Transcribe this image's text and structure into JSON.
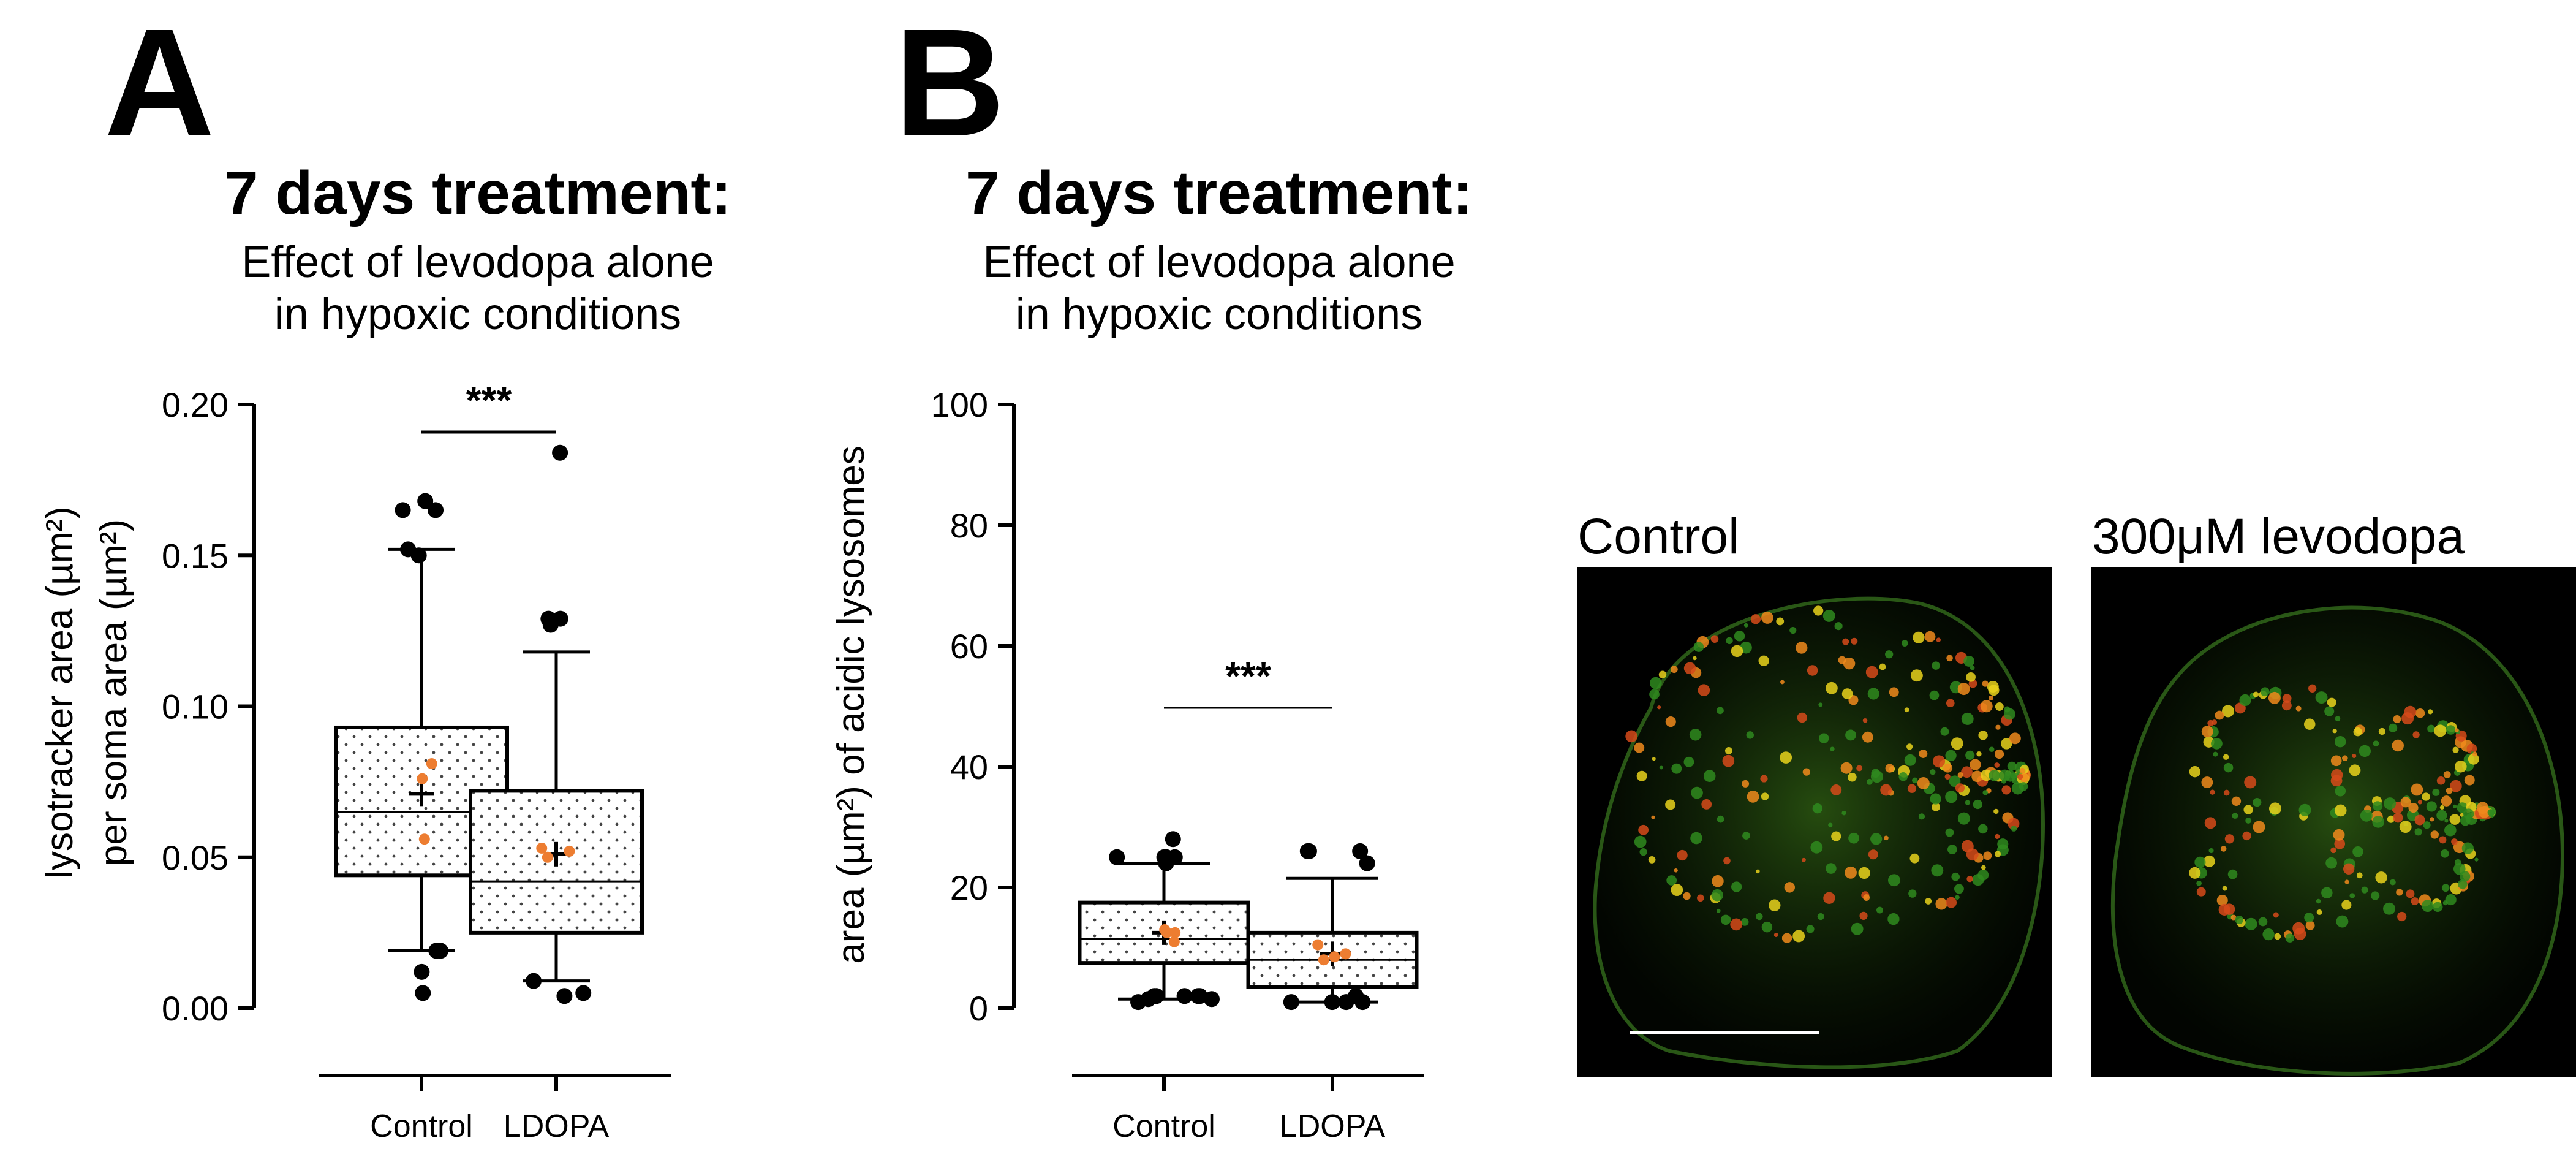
{
  "panels": [
    {
      "letter": "A",
      "title": "7 days treatment:",
      "subtitle_line1": "Effect of levodopa alone",
      "subtitle_line2": "in hypoxic conditions"
    },
    {
      "letter": "B",
      "title": "7 days treatment:",
      "subtitle_line1": "Effect of levodopa alone",
      "subtitle_line2": "in hypoxic conditions"
    }
  ],
  "chart_data": [
    {
      "type": "box",
      "title": "7 days treatment:",
      "subtitle": "Effect of levodopa alone in hypoxic conditions",
      "ylabel_line1": "lysotracker area (µm²)",
      "ylabel_line2": "per soma area (µm²)",
      "ylim": [
        0,
        0.2
      ],
      "yticks": [
        0,
        0.05,
        0.1,
        0.15,
        0.2
      ],
      "ytick_labels": [
        "0.00",
        "0.05",
        "0.10",
        "0.15",
        "0.20"
      ],
      "categories": [
        "Control",
        "LDOPA"
      ],
      "significance": "***",
      "grid": false,
      "boxes": [
        {
          "name": "Control",
          "whisker_low": 0.019,
          "q1": 0.044,
          "median": 0.065,
          "q3": 0.093,
          "whisker_high": 0.152,
          "mean": 0.071,
          "outliers": [
            0.165,
            0.165,
            0.168,
            0.15,
            0.152,
            0.019,
            0.019,
            0.012,
            0.005
          ],
          "points": [
            0.081,
            0.076,
            0.056
          ]
        },
        {
          "name": "LDOPA",
          "whisker_low": 0.009,
          "q1": 0.025,
          "median": 0.042,
          "q3": 0.072,
          "whisker_high": 0.118,
          "mean": 0.051,
          "outliers": [
            0.184,
            0.129,
            0.127,
            0.129,
            0.009,
            0.004,
            0.005
          ],
          "points": [
            0.053,
            0.05,
            0.052
          ]
        }
      ]
    },
    {
      "type": "box",
      "title": "7 days treatment:",
      "subtitle": "Effect of levodopa alone in hypoxic conditions",
      "ylabel": "area (µm²) of acidic lysosomes",
      "ylim": [
        0,
        100
      ],
      "yticks": [
        0,
        20,
        40,
        60,
        80,
        100
      ],
      "ytick_labels": [
        "0",
        "20",
        "40",
        "60",
        "80",
        "100"
      ],
      "categories": [
        "Control",
        "LDOPA"
      ],
      "significance": "***",
      "grid": false,
      "boxes": [
        {
          "name": "Control",
          "whisker_low": 1.5,
          "q1": 7.5,
          "median": 11.5,
          "q3": 17.5,
          "whisker_high": 24,
          "mean": 12.5,
          "outliers": [
            25,
            25,
            24,
            25,
            28,
            25,
            2,
            2,
            1.5,
            2,
            1,
            1.5,
            2,
            2
          ],
          "points": [
            11,
            13,
            12.5,
            12.5
          ]
        },
        {
          "name": "LDOPA",
          "whisker_low": 1,
          "q1": 3.5,
          "median": 8,
          "q3": 12.5,
          "whisker_high": 21.5,
          "mean": 9,
          "outliers": [
            26,
            26,
            26,
            24,
            1,
            1,
            1,
            1,
            2
          ],
          "points": [
            10.5,
            8,
            9,
            8.5
          ]
        }
      ]
    }
  ],
  "images": [
    {
      "label": "Control"
    },
    {
      "label": "300μM levodopa"
    }
  ],
  "colors": {
    "orange": "#ED7D31",
    "black": "#000000",
    "green": "#2f8a1e",
    "red": "#d64a1a",
    "yellow": "#e9d21c"
  }
}
